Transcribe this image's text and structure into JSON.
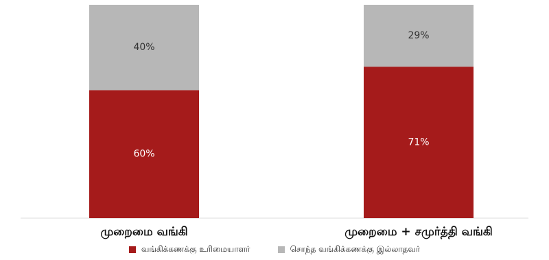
{
  "chart_data": {
    "type": "bar",
    "stacked": true,
    "categories": [
      "முறைமை வங்கி",
      "முறைமை + சமுர்த்தி வங்கி"
    ],
    "series": [
      {
        "name": "வங்கிக்கணக்கு உரிமையாளர்",
        "values": [
          60,
          71
        ],
        "labels": [
          "60%",
          "71%"
        ],
        "color": "#a51b1b"
      },
      {
        "name": "சொந்த வங்கிக்கணக்கு இல்லாதவர்",
        "values": [
          40,
          29
        ],
        "labels": [
          "40%",
          "29%"
        ],
        "color": "#b7b7b7"
      }
    ],
    "ylim": [
      0,
      100
    ],
    "grid": false,
    "legend_position": "bottom"
  }
}
